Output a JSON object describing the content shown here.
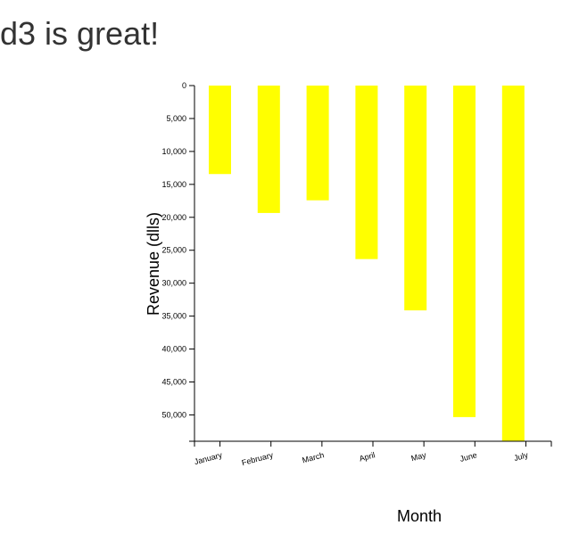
{
  "page": {
    "title": "d3 is great!"
  },
  "chart_data": {
    "type": "bar",
    "title": "",
    "xlabel": "Month",
    "ylabel": "Revenue (dlls)",
    "categories": [
      "January",
      "February",
      "March",
      "April",
      "May",
      "June",
      "July"
    ],
    "values": [
      13432,
      19342,
      17421,
      26342,
      34132,
      50332,
      54000
    ],
    "ylim": [
      0,
      54000
    ],
    "y_axis_inverted": true,
    "y_ticks": [
      0,
      5000,
      10000,
      15000,
      20000,
      25000,
      30000,
      35000,
      40000,
      45000,
      50000
    ],
    "y_tick_labels": [
      "0",
      "5,000",
      "10,000",
      "15,000",
      "20,000",
      "25,000",
      "30,000",
      "35,000",
      "40,000",
      "45,000",
      "50,000"
    ],
    "bar_color": "#ffff00",
    "grid": false,
    "legend": "none"
  }
}
